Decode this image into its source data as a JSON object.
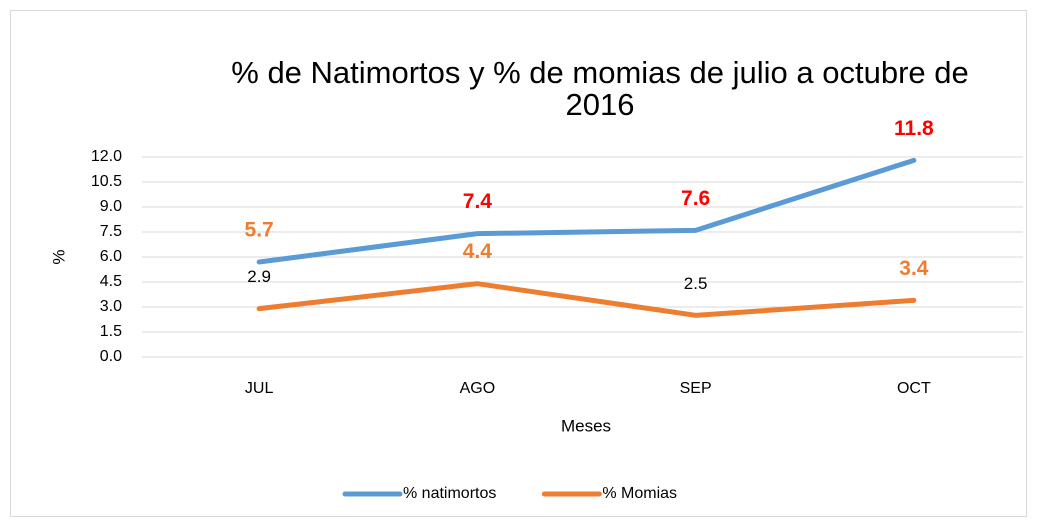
{
  "chart_data": {
    "type": "line",
    "title": "% de Natimortos y % de momias de julio a octubre de 2016",
    "x_label": "Meses",
    "y_label": "%",
    "categories": [
      "JUL",
      "AGO",
      "SEP",
      "OCT"
    ],
    "series": [
      {
        "name": "% natimortos",
        "color": "#5b9bd5",
        "values": [
          5.7,
          7.4,
          7.6,
          11.8
        ],
        "label_colors": [
          "#ed7d31",
          "#ff0000",
          "#ff0000",
          "#ff0000"
        ]
      },
      {
        "name": "% Momias",
        "color": "#ed7d31",
        "values": [
          2.9,
          4.4,
          2.5,
          3.4
        ],
        "label_colors": [
          "#000000",
          "#ed7d31",
          "#000000",
          "#ed7d31"
        ]
      }
    ],
    "ylim": [
      0,
      12
    ],
    "yticks": [
      {
        "value": 0,
        "label": "0.0"
      },
      1.5,
      {
        "value": 3,
        "label": "3.0"
      },
      4.5,
      {
        "value": 6,
        "label": "6.0"
      },
      7.5,
      {
        "value": 9,
        "label": "9.0"
      },
      10.5,
      {
        "value": 12,
        "label": "12.0"
      }
    ],
    "grid": true,
    "legend": "bottom"
  }
}
